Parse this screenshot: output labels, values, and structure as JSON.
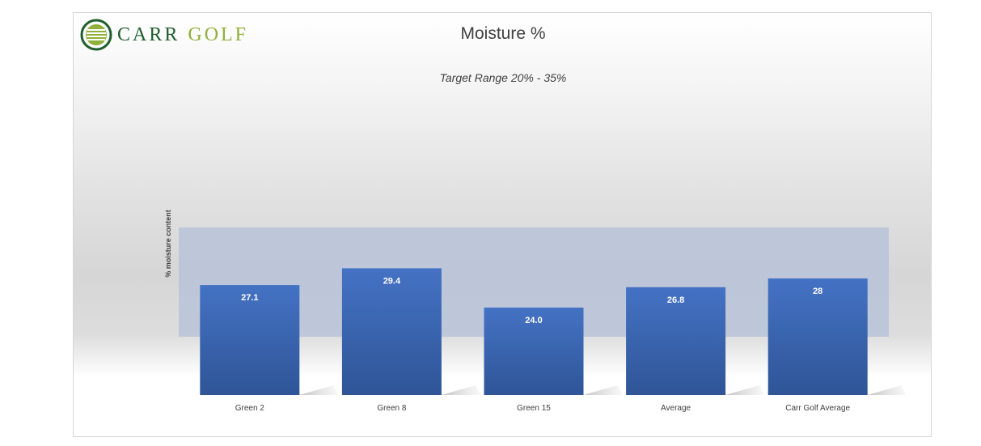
{
  "logo": {
    "text_carr": "CARR",
    "text_golf": "GOLF"
  },
  "colors": {
    "bar_top": "#4472c4",
    "bar_bottom": "#2f5597",
    "target_band": "#b4bfd8",
    "logo_green": "#1f5e2c",
    "logo_lime": "#8fb03a"
  },
  "chart_data": {
    "type": "bar",
    "title": "Moisture %",
    "subtitle": "Target Range 20% - 35%",
    "xlabel": "",
    "ylabel": "% moisture content",
    "categories": [
      "Green 2",
      "Green 8",
      "Green 15",
      "Average",
      "Carr Golf Average"
    ],
    "values": [
      27.1,
      29.4,
      24.0,
      26.8,
      28
    ],
    "data_labels": [
      "27.1",
      "29.4",
      "24.0",
      "26.8",
      "28"
    ],
    "target_range": [
      20,
      35
    ],
    "ylim": [
      12,
      50
    ],
    "grid": false,
    "legend": "none"
  }
}
